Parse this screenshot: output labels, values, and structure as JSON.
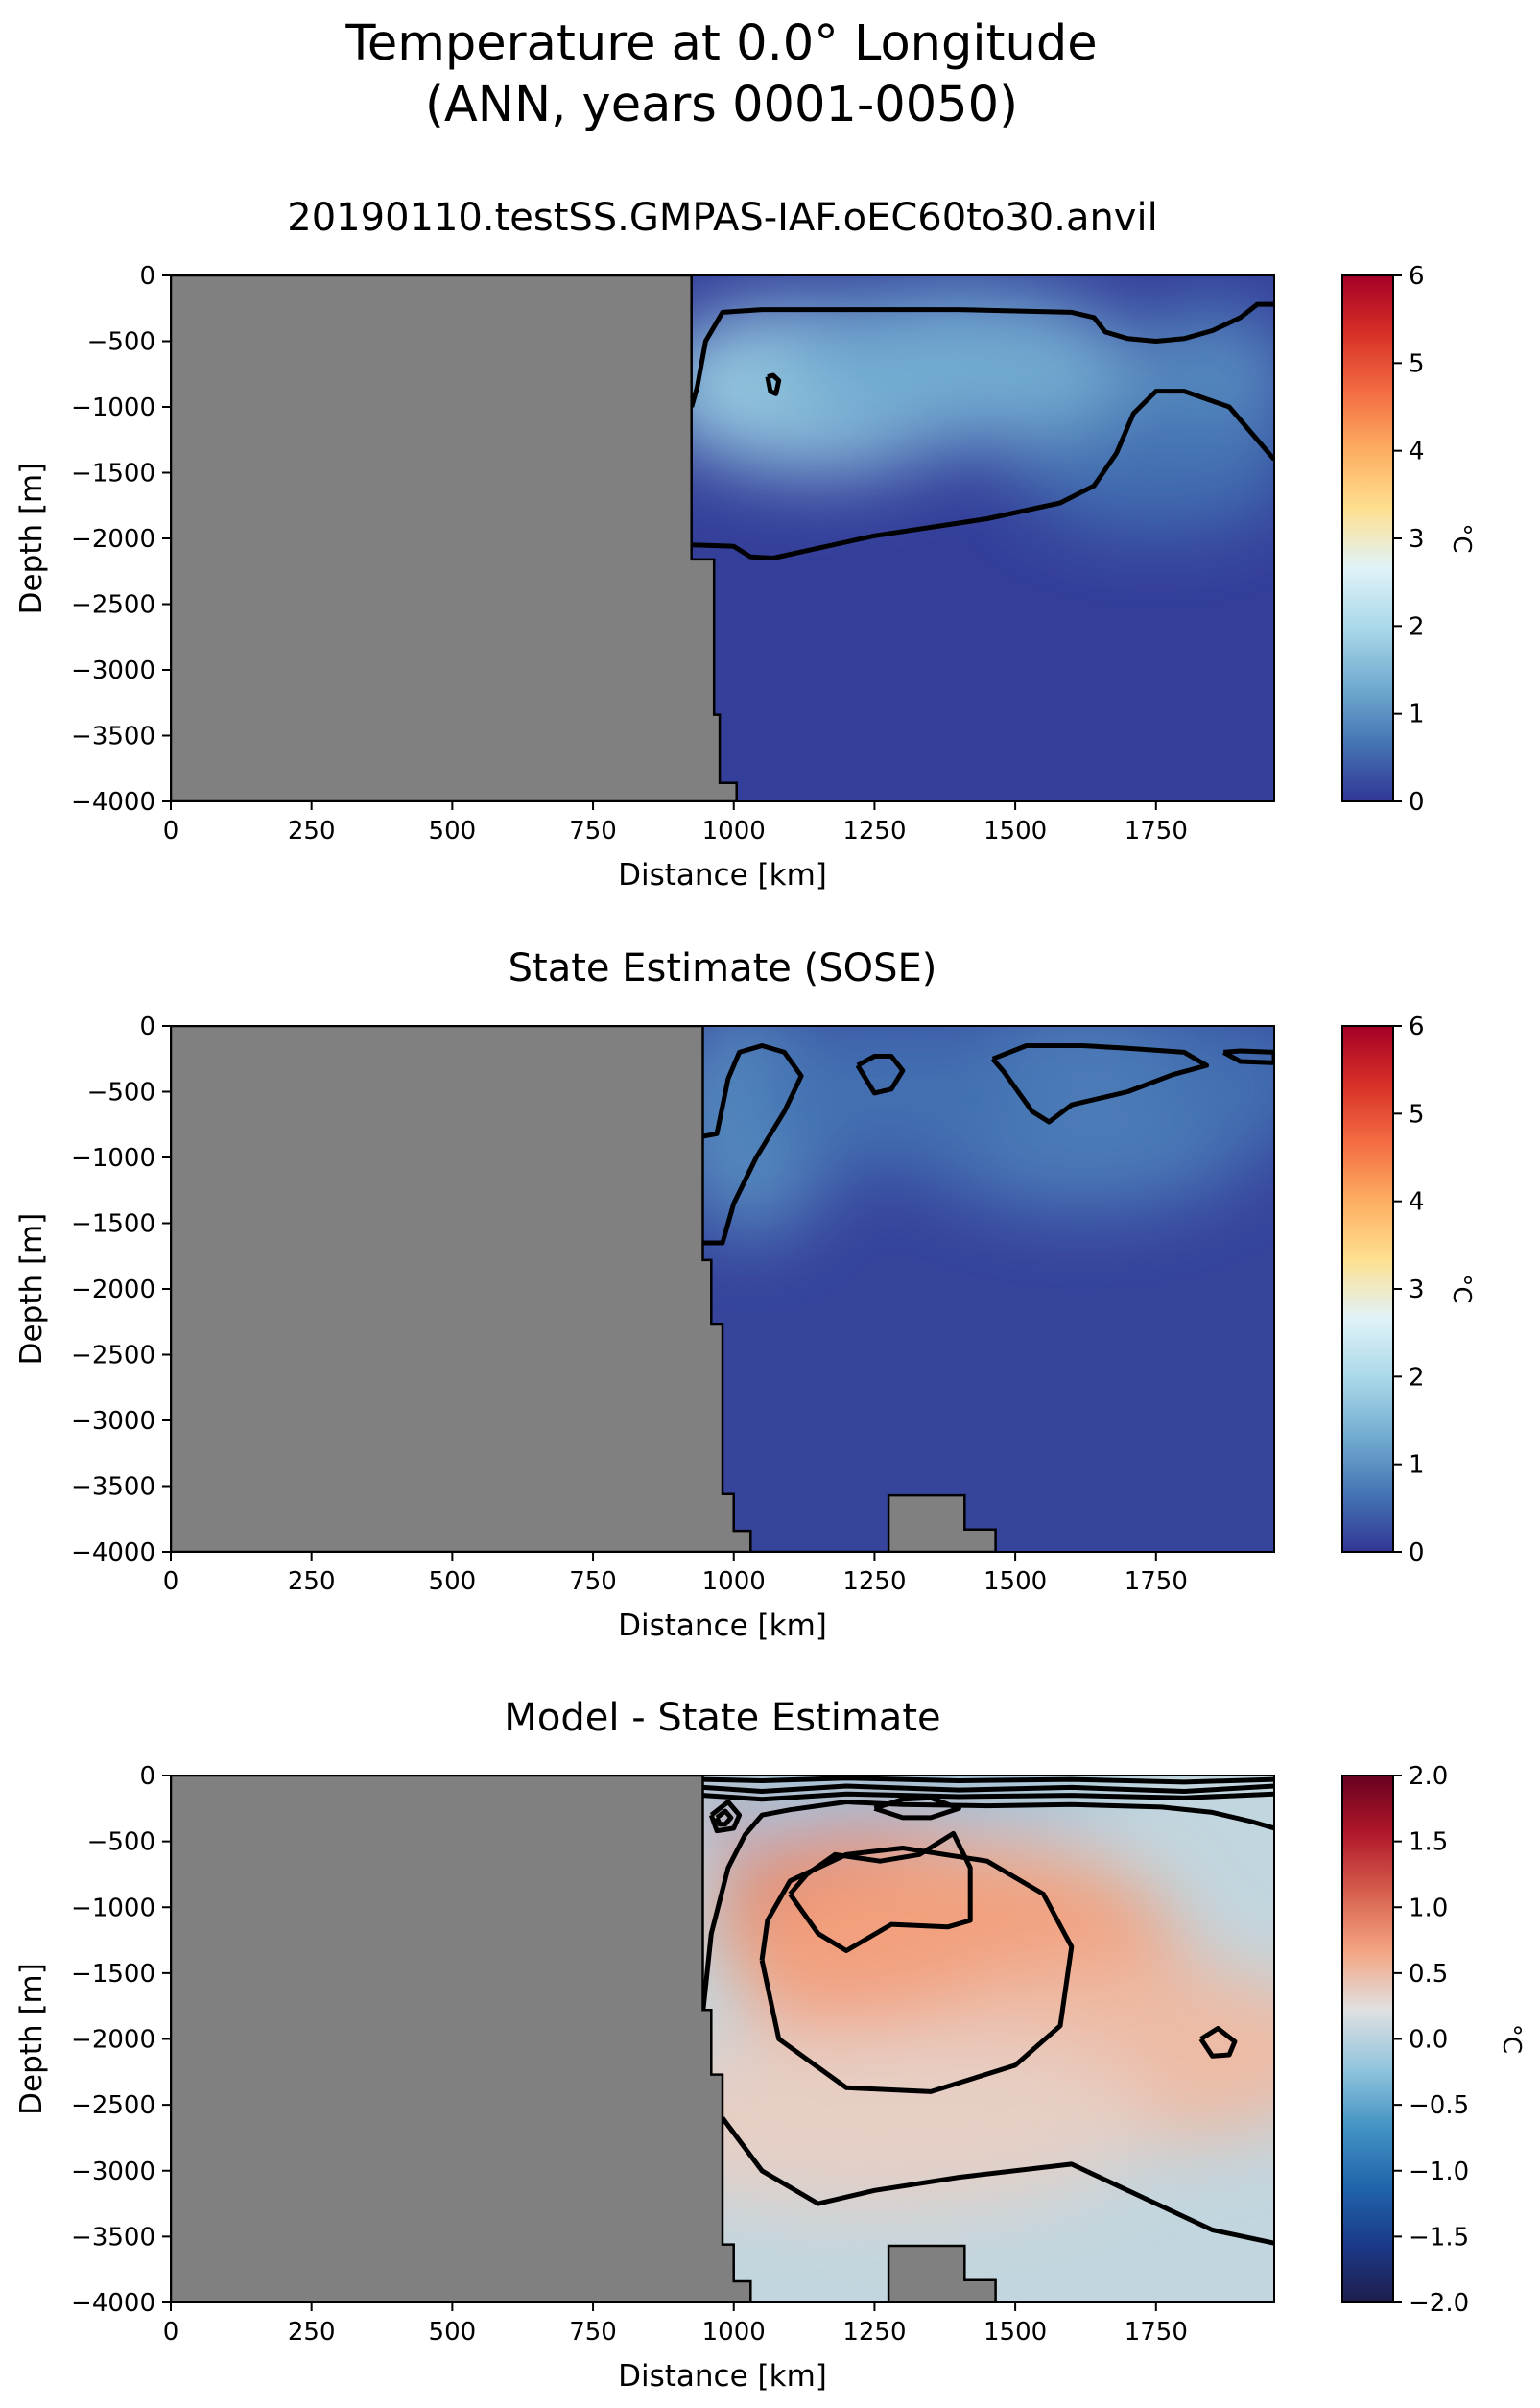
{
  "figure": {
    "title_line1": "Temperature at 0.0° Longitude",
    "title_line2": "(ANN, years 0001-0050)"
  },
  "chart_data": [
    {
      "type": "heatmap",
      "title": "20190110.testSS.GMPAS-IAF.oEC60to30.anvil",
      "xlabel": "Distance [km]",
      "ylabel": "Depth [m]",
      "xlim": [
        0,
        1960
      ],
      "ylim": [
        -4000,
        0
      ],
      "xticks": [
        0,
        250,
        500,
        750,
        1000,
        1250,
        1500,
        1750
      ],
      "yticks": [
        0,
        -500,
        -1000,
        -1500,
        -2000,
        -2500,
        -3000,
        -3500,
        -4000
      ],
      "colorbar": {
        "label": "°C",
        "min": 0,
        "max": 6,
        "ticks": [
          0,
          1,
          2,
          3,
          4,
          5,
          6
        ],
        "colormap": "RdYlBu_r"
      },
      "land_mask": {
        "color": "#808080",
        "x": [
          0,
          925,
          925,
          965,
          965,
          975,
          975,
          1005,
          1005,
          0
        ],
        "y": [
          0,
          0,
          -2160,
          -2160,
          -3340,
          -3340,
          -3860,
          -3860,
          -4000,
          -4000
        ]
      },
      "field_blobs": [
        {
          "x": 1150,
          "y": -850,
          "value": 1.7,
          "rx": 300,
          "ry": 650
        },
        {
          "x": 1400,
          "y": -700,
          "value": 1.3,
          "rx": 320,
          "ry": 600
        },
        {
          "x": 1850,
          "y": -800,
          "value": 0.9,
          "rx": 150,
          "ry": 550
        },
        {
          "x": 1750,
          "y": -1500,
          "value": 0.6,
          "rx": 250,
          "ry": 450
        }
      ],
      "field_background": 0.1,
      "contours": [
        {
          "x": [
            925,
            935,
            950,
            980,
            1050,
            1200,
            1400,
            1600,
            1640,
            1660,
            1700,
            1750,
            1800,
            1850,
            1900,
            1930,
            1960
          ],
          "y": [
            -1000,
            -850,
            -500,
            -280,
            -260,
            -260,
            -260,
            -280,
            -320,
            -430,
            -480,
            -500,
            -480,
            -420,
            -320,
            -220,
            -220
          ]
        },
        {
          "x": [
            925,
            1000,
            1030,
            1070,
            1250,
            1450,
            1580,
            1640,
            1680,
            1710,
            1750,
            1800,
            1880,
            1940,
            1960
          ],
          "y": [
            -2050,
            -2060,
            -2140,
            -2150,
            -1980,
            -1850,
            -1730,
            -1600,
            -1350,
            -1050,
            -880,
            -880,
            -1000,
            -1300,
            -1400
          ]
        },
        {
          "x": [
            1060,
            1070,
            1080,
            1075,
            1065,
            1060
          ],
          "y": [
            -770,
            -760,
            -800,
            -900,
            -880,
            -770
          ]
        }
      ]
    },
    {
      "type": "heatmap",
      "title": "State Estimate (SOSE)",
      "xlabel": "Distance [km]",
      "ylabel": "Depth [m]",
      "xlim": [
        0,
        1960
      ],
      "ylim": [
        -4000,
        0
      ],
      "xticks": [
        0,
        250,
        500,
        750,
        1000,
        1250,
        1500,
        1750
      ],
      "yticks": [
        0,
        -500,
        -1000,
        -1500,
        -2000,
        -2500,
        -3000,
        -3500,
        -4000
      ],
      "colorbar": {
        "label": "°C",
        "min": 0,
        "max": 6,
        "ticks": [
          0,
          1,
          2,
          3,
          4,
          5,
          6
        ],
        "colormap": "RdYlBu_r"
      },
      "land_mask": {
        "color": "#808080",
        "x": [
          0,
          945,
          945,
          960,
          960,
          980,
          980,
          1000,
          1000,
          1030,
          1030,
          1275,
          1275,
          1410,
          1410,
          1465,
          1465,
          0
        ],
        "y": [
          0,
          0,
          -1780,
          -1780,
          -2270,
          -2270,
          -3560,
          -3560,
          -3840,
          -3840,
          -4000,
          -4000,
          -3570,
          -3570,
          -3830,
          -3830,
          -4000,
          -4000
        ]
      },
      "field_blobs": [
        {
          "x": 1030,
          "y": -700,
          "value": 0.9,
          "rx": 150,
          "ry": 900
        },
        {
          "x": 1620,
          "y": -600,
          "value": 0.75,
          "rx": 350,
          "ry": 800
        },
        {
          "x": 1280,
          "y": -500,
          "value": 0.6,
          "rx": 250,
          "ry": 600
        },
        {
          "x": 1900,
          "y": -400,
          "value": 0.6,
          "rx": 150,
          "ry": 500
        }
      ],
      "field_background": 0.15,
      "contours": [
        {
          "x": [
            945,
            980,
            1000,
            1040,
            1090,
            1120,
            1090,
            1050,
            1010,
            990,
            970,
            945
          ],
          "y": [
            -1650,
            -1650,
            -1350,
            -1000,
            -650,
            -380,
            -200,
            -150,
            -200,
            -400,
            -820,
            -840
          ]
        },
        {
          "x": [
            1220,
            1250,
            1280,
            1300,
            1280,
            1250,
            1220
          ],
          "y": [
            -300,
            -230,
            -230,
            -340,
            -480,
            -510,
            -300
          ]
        },
        {
          "x": [
            1460,
            1520,
            1620,
            1700,
            1800,
            1840,
            1780,
            1700,
            1600,
            1560,
            1530,
            1480,
            1460
          ],
          "y": [
            -250,
            -150,
            -150,
            -170,
            -200,
            -300,
            -370,
            -500,
            -600,
            -730,
            -650,
            -350,
            -250
          ]
        },
        {
          "x": [
            1870,
            1900,
            1960,
            1960,
            1900,
            1870
          ],
          "y": [
            -200,
            -190,
            -200,
            -280,
            -270,
            -200
          ]
        }
      ]
    },
    {
      "type": "heatmap",
      "title": "Model - State Estimate",
      "xlabel": "Distance [km]",
      "ylabel": "Depth [m]",
      "xlim": [
        0,
        1960
      ],
      "ylim": [
        -4000,
        0
      ],
      "xticks": [
        0,
        250,
        500,
        750,
        1000,
        1250,
        1500,
        1750
      ],
      "yticks": [
        0,
        -500,
        -1000,
        -1500,
        -2000,
        -2500,
        -3000,
        -3500,
        -4000
      ],
      "colorbar": {
        "label": "°C",
        "min": -2.0,
        "max": 2.0,
        "ticks": [
          2.0,
          1.5,
          1.0,
          0.5,
          0.0,
          -0.5,
          -1.0,
          -1.5,
          -2.0
        ],
        "colormap": "RdBu_r"
      },
      "land_mask": {
        "color": "#808080",
        "x": [
          0,
          945,
          945,
          960,
          960,
          980,
          980,
          1000,
          1000,
          1030,
          1030,
          1275,
          1275,
          1410,
          1410,
          1465,
          1465,
          0
        ],
        "y": [
          0,
          0,
          -1780,
          -1780,
          -2270,
          -2270,
          -3560,
          -3560,
          -3840,
          -3840,
          -4000,
          -4000,
          -3570,
          -3570,
          -3830,
          -3830,
          -4000,
          -4000
        ]
      },
      "field_blobs": [
        {
          "x": 1250,
          "y": -1050,
          "value": 1.0,
          "rx": 280,
          "ry": 650
        },
        {
          "x": 1400,
          "y": -1400,
          "value": 0.7,
          "rx": 400,
          "ry": 900
        },
        {
          "x": 1700,
          "y": -2100,
          "value": 0.5,
          "rx": 400,
          "ry": 700
        },
        {
          "x": 1250,
          "y": -2600,
          "value": 0.35,
          "rx": 500,
          "ry": 700
        },
        {
          "x": 980,
          "y": -320,
          "value": 1.3,
          "rx": 40,
          "ry": 150
        },
        {
          "x": 1300,
          "y": -120,
          "value": -0.4,
          "rx": 400,
          "ry": 150
        }
      ],
      "field_background": 0.05,
      "contours": [
        {
          "x": [
            945,
            1050,
            1200,
            1400,
            1600,
            1800,
            1960
          ],
          "y": [
            -30,
            -40,
            -20,
            -40,
            -30,
            -50,
            -30
          ]
        },
        {
          "x": [
            945,
            1050,
            1200,
            1400,
            1600,
            1800,
            1960
          ],
          "y": [
            -90,
            -120,
            -80,
            -110,
            -90,
            -120,
            -80
          ]
        },
        {
          "x": [
            945,
            1050,
            1200,
            1400,
            1600,
            1800,
            1960
          ],
          "y": [
            -150,
            -180,
            -140,
            -160,
            -150,
            -170,
            -140
          ]
        },
        {
          "x": [
            945,
            960,
            990,
            1020,
            1050,
            1100,
            1200,
            1300,
            1450,
            1600,
            1760,
            1850,
            1920,
            1960
          ],
          "y": [
            -1800,
            -1200,
            -700,
            -450,
            -300,
            -260,
            -200,
            -220,
            -230,
            -220,
            -240,
            -280,
            -350,
            -400
          ]
        },
        {
          "x": [
            980,
            1050,
            1150,
            1250,
            1400,
            1600,
            1700,
            1850,
            1960
          ],
          "y": [
            -2600,
            -3000,
            -3250,
            -3150,
            -3050,
            -2950,
            -3150,
            -3450,
            -3550
          ]
        },
        {
          "x": [
            1050,
            1080,
            1200,
            1350,
            1500,
            1580,
            1600,
            1550,
            1450,
            1300,
            1200,
            1100,
            1060,
            1050
          ],
          "y": [
            -1400,
            -2000,
            -2370,
            -2400,
            -2200,
            -1900,
            -1300,
            -900,
            -650,
            -550,
            -600,
            -800,
            -1100,
            -1400
          ]
        },
        {
          "x": [
            1100,
            1150,
            1200,
            1280,
            1380,
            1420,
            1420,
            1390,
            1330,
            1260,
            1180,
            1130,
            1100
          ],
          "y": [
            -900,
            -1200,
            -1330,
            -1130,
            -1150,
            -1100,
            -700,
            -440,
            -600,
            -650,
            -600,
            -750,
            -900
          ]
        },
        {
          "x": [
            1250,
            1300,
            1350,
            1400,
            1350,
            1300,
            1250
          ],
          "y": [
            -250,
            -180,
            -170,
            -250,
            -320,
            -320,
            -250
          ]
        },
        {
          "x": [
            1830,
            1860,
            1890,
            1880,
            1850,
            1830
          ],
          "y": [
            -2000,
            -1920,
            -2020,
            -2120,
            -2130,
            -2000
          ]
        },
        {
          "x": [
            960,
            990,
            1010,
            1000,
            970,
            960
          ],
          "y": [
            -300,
            -200,
            -300,
            -400,
            -420,
            -300
          ]
        },
        {
          "x": [
            970,
            985,
            995,
            985,
            975,
            970
          ],
          "y": [
            -320,
            -270,
            -320,
            -370,
            -370,
            -320
          ]
        }
      ]
    }
  ]
}
